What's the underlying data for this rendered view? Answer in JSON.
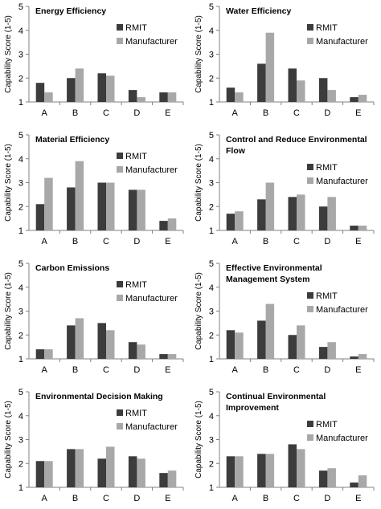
{
  "colors": {
    "rmit": "#3c3c3c",
    "manufacturer": "#a8a8a8",
    "axis": "#808080"
  },
  "chart_data": [
    {
      "type": "bar",
      "title": "Energy Efficiency",
      "ylabel": "Capability Score (1-5)",
      "xlabel": "",
      "ylim": [
        1,
        5
      ],
      "yticks": [
        "1",
        "2",
        "3",
        "4",
        "5"
      ],
      "categories": [
        "A",
        "B",
        "C",
        "D",
        "E"
      ],
      "legend_position": "top-right",
      "series": [
        {
          "name": "RMIT",
          "values": [
            1.8,
            2.0,
            2.2,
            1.5,
            1.4
          ]
        },
        {
          "name": "Manufacturer",
          "values": [
            1.4,
            2.4,
            2.1,
            1.2,
            1.4
          ]
        }
      ]
    },
    {
      "type": "bar",
      "title": "Water Efficiency",
      "ylabel": "Capability Score (1-5)",
      "xlabel": "",
      "ylim": [
        1,
        5
      ],
      "yticks": [
        "1",
        "2",
        "3",
        "4",
        "5"
      ],
      "categories": [
        "A",
        "B",
        "C",
        "D",
        "E"
      ],
      "legend_position": "top-right",
      "series": [
        {
          "name": "RMIT",
          "values": [
            1.6,
            2.6,
            2.4,
            2.0,
            1.2
          ]
        },
        {
          "name": "Manufacturer",
          "values": [
            1.4,
            3.9,
            1.9,
            1.5,
            1.3
          ]
        }
      ]
    },
    {
      "type": "bar",
      "title": "Material Efficiency",
      "ylabel": "Capability Score (1-5)",
      "xlabel": "",
      "ylim": [
        1,
        5
      ],
      "yticks": [
        "1",
        "2",
        "3",
        "4",
        "5"
      ],
      "categories": [
        "A",
        "B",
        "C",
        "D",
        "E"
      ],
      "legend_position": "top-right",
      "series": [
        {
          "name": "RMIT",
          "values": [
            2.1,
            2.8,
            3.0,
            2.7,
            1.4
          ]
        },
        {
          "name": "Manufacturer",
          "values": [
            3.2,
            3.9,
            3.0,
            2.7,
            1.5
          ]
        }
      ]
    },
    {
      "type": "bar",
      "title": "Control and Reduce Environmental Flow",
      "title_lines": [
        "Control and Reduce Environmental",
        "Flow"
      ],
      "ylabel": "Capability Score (1-5)",
      "xlabel": "",
      "ylim": [
        1,
        5
      ],
      "yticks": [
        "1",
        "2",
        "3",
        "4",
        "5"
      ],
      "categories": [
        "A",
        "B",
        "C",
        "D",
        "E"
      ],
      "legend_position": "top-right",
      "series": [
        {
          "name": "RMIT",
          "values": [
            1.7,
            2.3,
            2.4,
            2.0,
            1.2
          ]
        },
        {
          "name": "Manufacturer",
          "values": [
            1.8,
            3.0,
            2.5,
            2.4,
            1.2
          ]
        }
      ]
    },
    {
      "type": "bar",
      "title": "Carbon Emissions",
      "ylabel": "Capability Score (1-5)",
      "xlabel": "",
      "ylim": [
        1,
        5
      ],
      "yticks": [
        "1",
        "2",
        "3",
        "4",
        "5"
      ],
      "categories": [
        "A",
        "B",
        "C",
        "D",
        "E"
      ],
      "legend_position": "top-right",
      "series": [
        {
          "name": "RMIT",
          "values": [
            1.4,
            2.4,
            2.5,
            1.7,
            1.2
          ]
        },
        {
          "name": "Manufacturer",
          "values": [
            1.4,
            2.7,
            2.2,
            1.6,
            1.2
          ]
        }
      ]
    },
    {
      "type": "bar",
      "title": "Effective Environmental Management System",
      "title_lines": [
        "Effective Environmental",
        "Management System"
      ],
      "ylabel": "Capability Score (1-5)",
      "xlabel": "",
      "ylim": [
        1,
        5
      ],
      "yticks": [
        "1",
        "2",
        "3",
        "4",
        "5"
      ],
      "categories": [
        "A",
        "B",
        "C",
        "D",
        "E"
      ],
      "legend_position": "top-right",
      "series": [
        {
          "name": "RMIT",
          "values": [
            2.2,
            2.6,
            2.0,
            1.5,
            1.1
          ]
        },
        {
          "name": "Manufacturer",
          "values": [
            2.1,
            3.3,
            2.4,
            1.7,
            1.2
          ]
        }
      ]
    },
    {
      "type": "bar",
      "title": "Environmental Decision Making",
      "ylabel": "Capability Score (1-5)",
      "xlabel": "",
      "ylim": [
        1,
        5
      ],
      "yticks": [
        "1",
        "2",
        "3",
        "4",
        "5"
      ],
      "categories": [
        "A",
        "B",
        "C",
        "D",
        "E"
      ],
      "legend_position": "top-right",
      "series": [
        {
          "name": "RMIT",
          "values": [
            2.1,
            2.6,
            2.2,
            2.3,
            1.6
          ]
        },
        {
          "name": "Manufacturer",
          "values": [
            2.1,
            2.6,
            2.7,
            2.2,
            1.7
          ]
        }
      ]
    },
    {
      "type": "bar",
      "title": "Continual Environmental Improvement",
      "title_lines": [
        "Continual Environmental",
        "Improvement"
      ],
      "ylabel": "Capability Score (1-5)",
      "xlabel": "",
      "ylim": [
        1,
        5
      ],
      "yticks": [
        "1",
        "2",
        "3",
        "4",
        "5"
      ],
      "categories": [
        "A",
        "B",
        "C",
        "D",
        "E"
      ],
      "legend_position": "top-right",
      "series": [
        {
          "name": "RMIT",
          "values": [
            2.3,
            2.4,
            2.8,
            1.7,
            1.2
          ]
        },
        {
          "name": "Manufacturer",
          "values": [
            2.3,
            2.4,
            2.6,
            1.8,
            1.5
          ]
        }
      ]
    }
  ]
}
